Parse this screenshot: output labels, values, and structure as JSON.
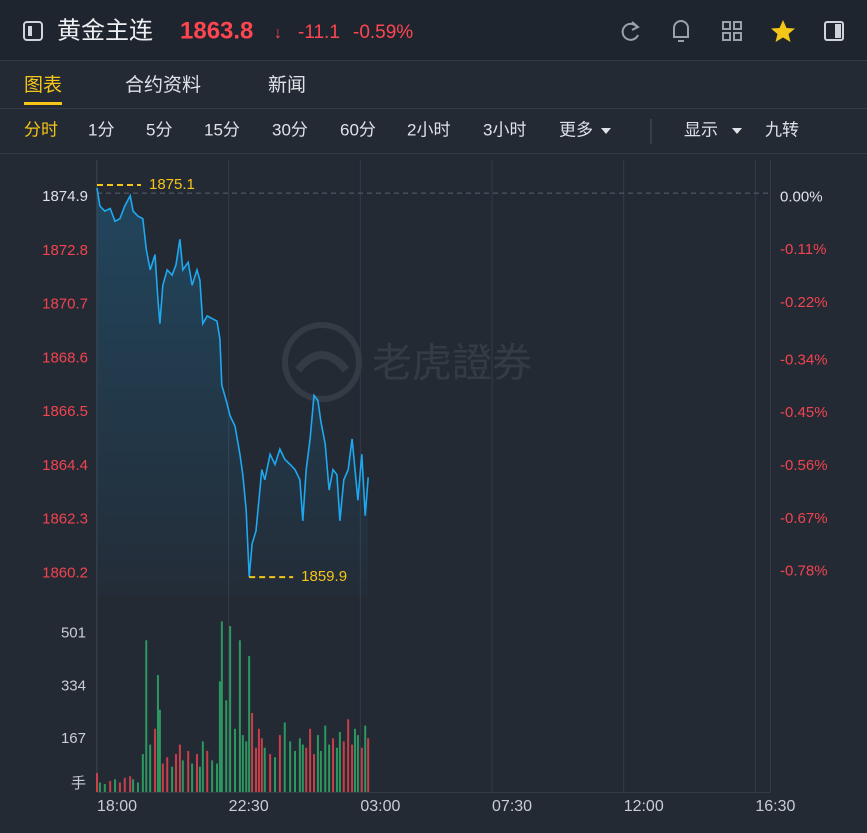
{
  "header": {
    "title": "黄金主连",
    "price": "1863.8",
    "arrow": "↓",
    "change": "-11.1",
    "change_pct": "-0.59%"
  },
  "tabs": [
    "图表",
    "合约资料",
    "新闻"
  ],
  "active_tab": 0,
  "intervals": [
    "分时",
    "1分",
    "5分",
    "15分",
    "30分",
    "60分",
    "2小时",
    "3小时",
    "更多"
  ],
  "active_interval": 0,
  "display": "显示",
  "nine_turn": "九转",
  "chart_data": {
    "type": "line",
    "watermark": "老虎證券",
    "color": "#1ea8f0",
    "grid": true,
    "x": [
      0,
      6,
      16,
      27,
      37,
      47,
      57,
      68,
      74,
      84,
      94,
      101,
      109,
      119,
      125,
      129,
      135,
      144,
      154,
      162,
      170,
      176,
      187,
      195,
      205,
      211,
      217,
      226,
      236,
      246,
      252,
      256,
      265,
      273,
      283,
      293,
      299,
      306,
      312,
      318,
      326,
      332,
      338,
      344,
      355,
      365,
      375,
      385,
      396,
      406,
      416,
      422,
      429,
      437,
      445,
      453,
      459,
      468,
      476,
      484,
      492,
      498,
      506,
      515,
      523,
      529,
      535,
      543,
      550,
      556
    ],
    "values": [
      1875.1,
      1874.4,
      1874.2,
      1874.3,
      1873.8,
      1873.9,
      1874.4,
      1874.8,
      1874.2,
      1874.0,
      1873.9,
      1872.7,
      1871.9,
      1872.5,
      1870.7,
      1869.8,
      1871.3,
      1871.9,
      1871.7,
      1872.1,
      1873.1,
      1871.9,
      1872.2,
      1871.3,
      1871.9,
      1871.5,
      1869.8,
      1870.1,
      1870.0,
      1869.9,
      1869.2,
      1867.4,
      1866.8,
      1866.2,
      1865.8,
      1864.7,
      1863.9,
      1862.5,
      1859.9,
      1861.2,
      1861.7,
      1862.9,
      1864.1,
      1863.7,
      1864.7,
      1864.3,
      1864.9,
      1864.5,
      1864.3,
      1864.1,
      1863.7,
      1862.1,
      1864.1,
      1865.3,
      1867.0,
      1866.8,
      1866.0,
      1865.1,
      1863.3,
      1864.1,
      1863.9,
      1862.1,
      1863.7,
      1864.1,
      1865.3,
      1864.1,
      1862.9,
      1864.7,
      1862.3,
      1863.8
    ],
    "xlim": [
      0,
      1380
    ],
    "xticks": [
      {
        "value": 0,
        "label": "18:00"
      },
      {
        "value": 270,
        "label": "22:30"
      },
      {
        "value": 540,
        "label": "03:00"
      },
      {
        "value": 810,
        "label": "07:30"
      },
      {
        "value": 1080,
        "label": "12:00"
      },
      {
        "value": 1350,
        "label": "16:30"
      }
    ],
    "ylim": [
      1859.2,
      1876.0
    ],
    "yticks": [
      1860.2,
      1862.3,
      1864.4,
      1866.5,
      1868.6,
      1870.7,
      1872.8,
      1874.9
    ],
    "y2lim": [
      -0.837,
      0.059
    ],
    "y2ticks": [
      {
        "value": -0.78,
        "label": "-0.78%"
      },
      {
        "value": -0.67,
        "label": "-0.67%"
      },
      {
        "value": -0.56,
        "label": "-0.56%"
      },
      {
        "value": -0.45,
        "label": "-0.45%"
      },
      {
        "value": -0.34,
        "label": "-0.34%"
      },
      {
        "value": -0.22,
        "label": "-0.22%"
      },
      {
        "value": -0.11,
        "label": "-0.11%"
      },
      {
        "value": 0,
        "label": "0.00%"
      }
    ],
    "max_label": 1875.1,
    "min_label": 1859.9,
    "volume": {
      "values": [
        60,
        30,
        25,
        35,
        40,
        30,
        45,
        50,
        40,
        30,
        120,
        480,
        150,
        200,
        370,
        260,
        90,
        110,
        80,
        120,
        150,
        100,
        130,
        90,
        120,
        80,
        160,
        130,
        100,
        90,
        350,
        540,
        290,
        525,
        200,
        480,
        180,
        160,
        430,
        250,
        140,
        200,
        170,
        140,
        120,
        110,
        180,
        220,
        160,
        130,
        170,
        150,
        140,
        200,
        120,
        180,
        130,
        210,
        150,
        170,
        140,
        190,
        160,
        230,
        150,
        200,
        180,
        140,
        210,
        170
      ],
      "ylim": [
        0,
        560
      ],
      "yticks": [
        167,
        334,
        501
      ],
      "unit": "手",
      "up_color": "#f2434f",
      "down_color": "#2fb36b"
    }
  }
}
